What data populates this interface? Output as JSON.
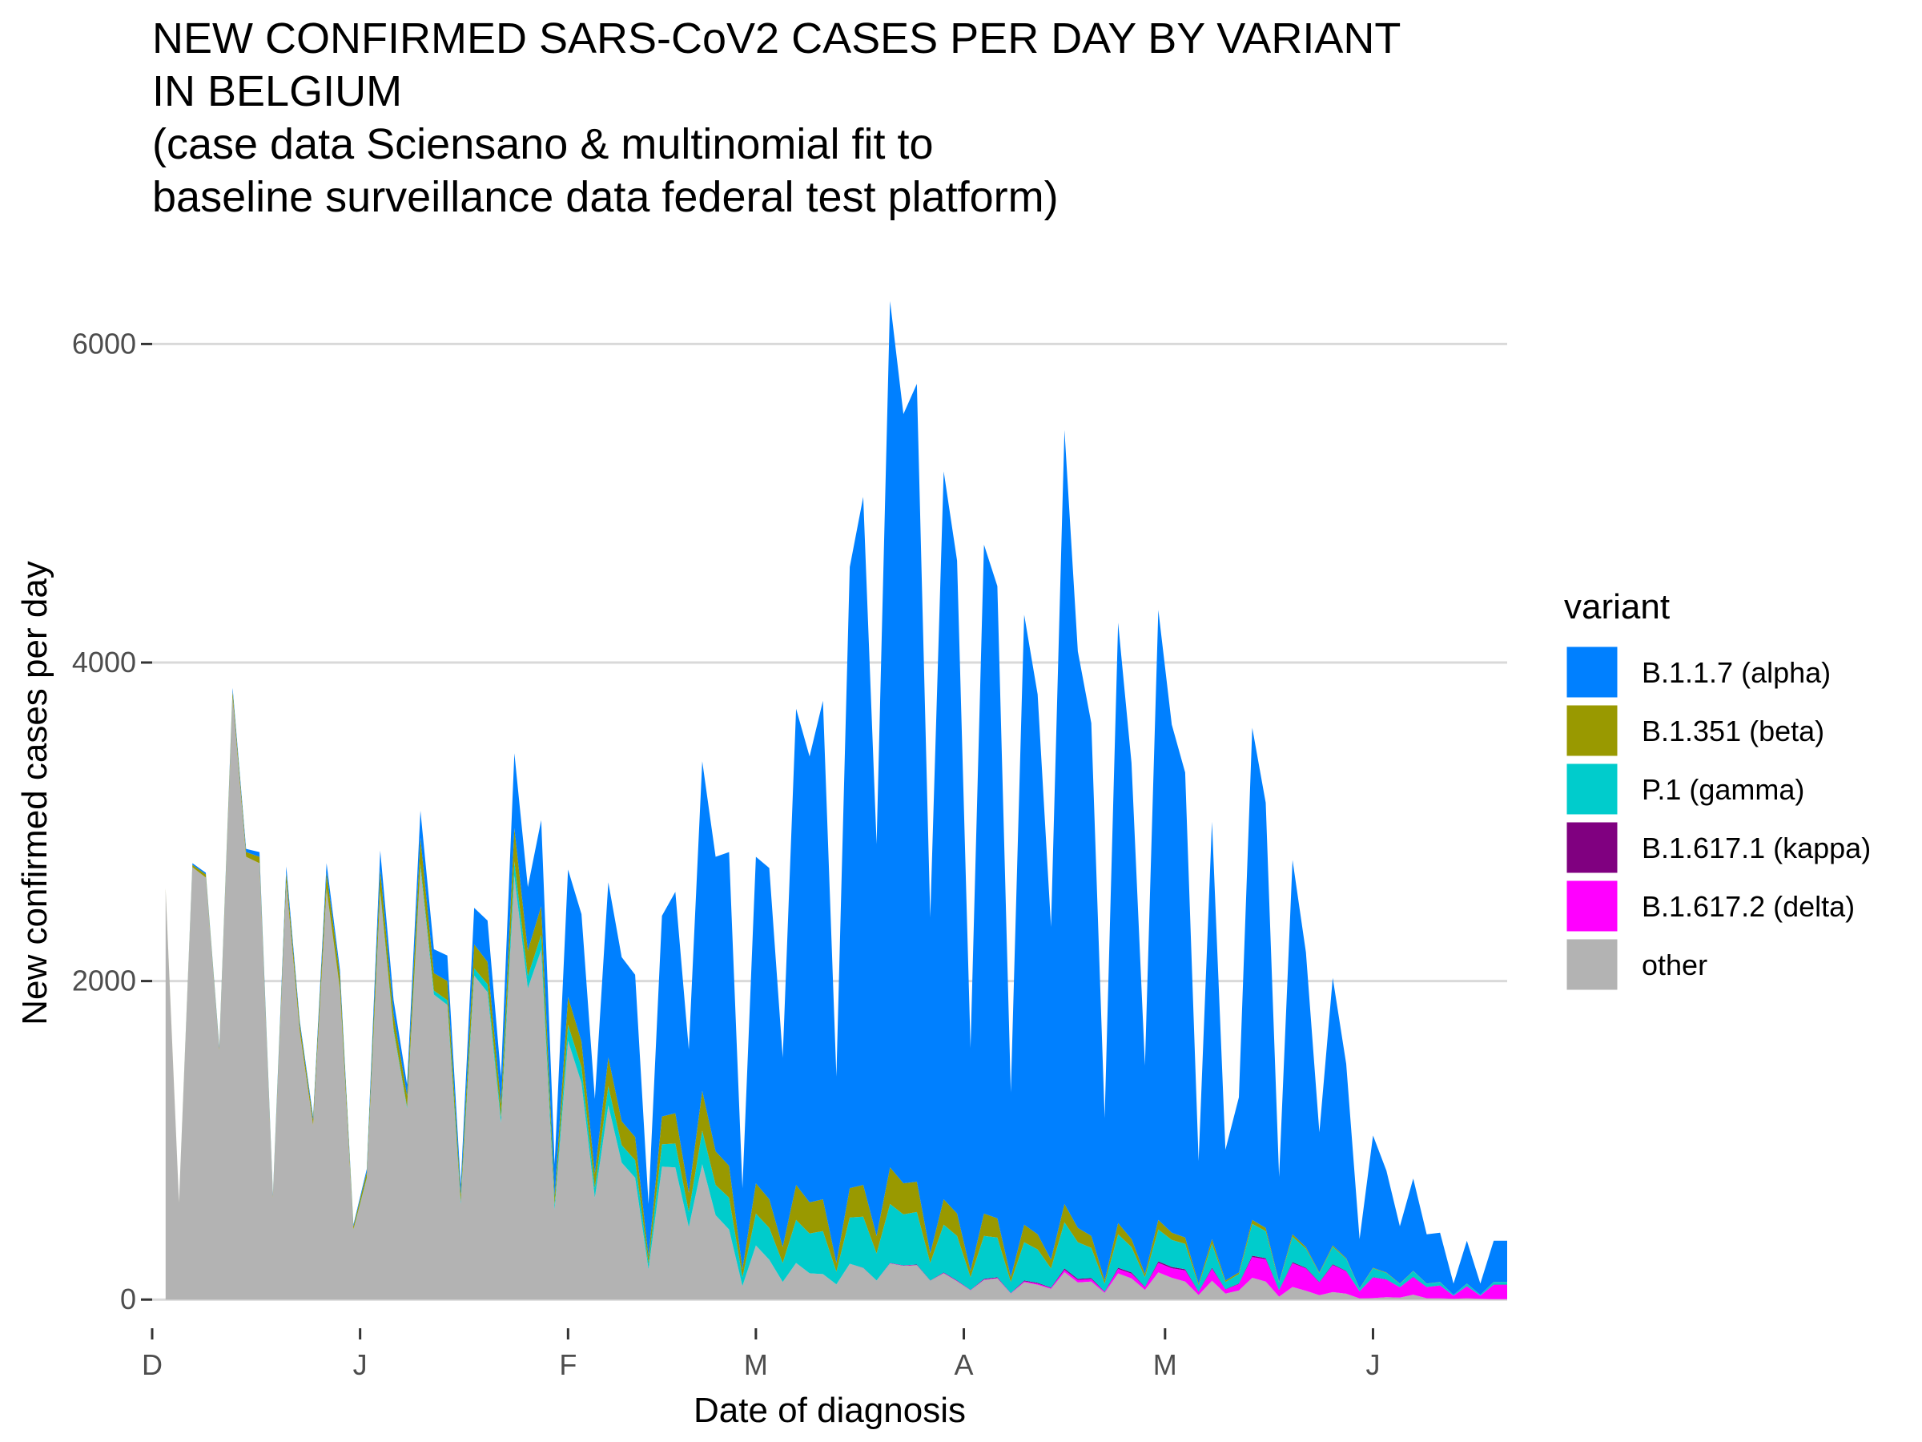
{
  "chart_data": {
    "type": "area",
    "stacked": true,
    "title_lines": [
      "NEW CONFIRMED SARS-CoV2 CASES PER DAY BY VARIANT",
      "IN BELGIUM",
      "(case data Sciensano & multinomial fit to",
      "baseline surveillance data federal test platform)"
    ],
    "xlabel": "Date of diagnosis",
    "ylabel": "New confirmed cases per day",
    "ylim": [
      -180,
      6500
    ],
    "y_ticks": [
      0,
      2000,
      4000,
      6000
    ],
    "x_tick_labels": [
      "D",
      "J",
      "F",
      "M",
      "A",
      "M",
      "J"
    ],
    "x_tick_days": [
      0,
      31,
      62,
      90,
      121,
      151,
      182
    ],
    "x_range_days": [
      0,
      202
    ],
    "x_unit": "days since 1 December",
    "grid": true,
    "legend_title": "variant",
    "legend_position": "right",
    "series_order_bottom_to_top": [
      "other",
      "B.1.617.2 (delta)",
      "B.1.617.1 (kappa)",
      "P.1 (gamma)",
      "B.1.351 (beta)",
      "B.1.1.7 (alpha)"
    ],
    "legend_items": [
      {
        "name": "B.1.1.7 (alpha)",
        "color": "#0080FF"
      },
      {
        "name": "B.1.351 (beta)",
        "color": "#999900"
      },
      {
        "name": "P.1 (gamma)",
        "color": "#00CCCC"
      },
      {
        "name": "B.1.617.1 (kappa)",
        "color": "#800080"
      },
      {
        "name": "B.1.617.2 (delta)",
        "color": "#FF00FF"
      },
      {
        "name": "other",
        "color": "#B3B3B3"
      }
    ],
    "daily": {
      "day": [
        2,
        4,
        6,
        8,
        10,
        12,
        14,
        16,
        18,
        20,
        22,
        24,
        26,
        28,
        30,
        32,
        34,
        36,
        38,
        40,
        42,
        44,
        46,
        48,
        50,
        52,
        54,
        56,
        58,
        60,
        62,
        64,
        66,
        68,
        70,
        72,
        74,
        76,
        78,
        80,
        82,
        84,
        86,
        88,
        90,
        92,
        94,
        96,
        98,
        100,
        102,
        104,
        106,
        108,
        110,
        112,
        114,
        116,
        118,
        120,
        122,
        124,
        126,
        128,
        130,
        132,
        134,
        136,
        138,
        140,
        142,
        144,
        146,
        148,
        150,
        152,
        154,
        156,
        158,
        160,
        162,
        164,
        166,
        168,
        170,
        172,
        174,
        176,
        178,
        180,
        182,
        184,
        186,
        188,
        190,
        192,
        194,
        196,
        198,
        200,
        202
      ],
      "total": [
        2580,
        610,
        2740,
        2680,
        1590,
        3840,
        2830,
        2810,
        660,
        2720,
        1750,
        1150,
        2740,
        2070,
        470,
        820,
        2820,
        1880,
        1350,
        3070,
        2200,
        2160,
        720,
        2460,
        2380,
        1400,
        3430,
        2590,
        3010,
        850,
        2700,
        2420,
        1260,
        2620,
        2150,
        2040,
        600,
        2410,
        2560,
        1570,
        3380,
        2780,
        2810,
        700,
        2780,
        2710,
        1520,
        3710,
        3410,
        3760,
        1400,
        4600,
        5040,
        2860,
        6270,
        5560,
        5750,
        2400,
        5200,
        4640,
        1580,
        4740,
        4480,
        1300,
        4300,
        3800,
        2340,
        5460,
        4070,
        3620,
        1140,
        4250,
        3370,
        1470,
        4330,
        3610,
        3310,
        870,
        3000,
        940,
        1270,
        3590,
        3120,
        770,
        2760,
        2180,
        1050,
        2020,
        1480,
        380,
        1030,
        810,
        460,
        760,
        410,
        420,
        100,
        370,
        100,
        370,
        370
      ],
      "alpha": [
        0,
        0,
        10,
        10,
        10,
        20,
        20,
        30,
        10,
        40,
        20,
        20,
        60,
        40,
        10,
        20,
        120,
        90,
        70,
        170,
        150,
        160,
        60,
        230,
        260,
        170,
        470,
        400,
        540,
        200,
        800,
        800,
        470,
        1100,
        1030,
        1020,
        330,
        1260,
        1390,
        900,
        2070,
        1850,
        1970,
        510,
        2050,
        2080,
        1190,
        2990,
        2800,
        3130,
        1170,
        3900,
        4320,
        2460,
        5440,
        4830,
        5010,
        2110,
        4570,
        4100,
        1400,
        4200,
        3970,
        1160,
        3830,
        3390,
        2090,
        4860,
        3620,
        3220,
        1020,
        3770,
        2990,
        1310,
        3830,
        3190,
        2920,
        770,
        2620,
        820,
        1100,
        3090,
        2670,
        660,
        2350,
        1850,
        880,
        1680,
        1220,
        310,
        830,
        640,
        360,
        580,
        310,
        310,
        70,
        270,
        70,
        260,
        260
      ],
      "beta": [
        6,
        2,
        15,
        20,
        13,
        40,
        30,
        40,
        12,
        60,
        45,
        35,
        100,
        80,
        20,
        35,
        130,
        90,
        70,
        165,
        110,
        120,
        45,
        150,
        140,
        85,
        210,
        160,
        180,
        55,
        175,
        160,
        90,
        180,
        150,
        145,
        45,
        175,
        190,
        120,
        250,
        210,
        200,
        50,
        190,
        180,
        100,
        220,
        195,
        200,
        55,
        185,
        200,
        110,
        230,
        195,
        190,
        60,
        160,
        140,
        40,
        140,
        120,
        30,
        110,
        95,
        55,
        115,
        90,
        75,
        20,
        70,
        50,
        20,
        60,
        45,
        40,
        10,
        30,
        10,
        10,
        25,
        20,
        5,
        15,
        10,
        5,
        8,
        5,
        2,
        4,
        3,
        2,
        2,
        1,
        1,
        0,
        1,
        0,
        1,
        1
      ],
      "gamma": [
        0,
        0,
        0,
        0,
        0,
        0,
        0,
        0,
        0,
        0,
        0,
        0,
        5,
        5,
        2,
        5,
        15,
        15,
        10,
        25,
        25,
        30,
        15,
        45,
        50,
        35,
        90,
        75,
        95,
        30,
        100,
        100,
        60,
        120,
        110,
        110,
        35,
        140,
        150,
        95,
        210,
        190,
        200,
        55,
        200,
        200,
        120,
        270,
        250,
        270,
        80,
        290,
        320,
        170,
        370,
        320,
        330,
        110,
        300,
        280,
        80,
        270,
        250,
        70,
        240,
        210,
        120,
        290,
        230,
        190,
        50,
        210,
        160,
        60,
        200,
        170,
        160,
        40,
        150,
        45,
        60,
        200,
        170,
        45,
        160,
        120,
        55,
        110,
        75,
        15,
        55,
        40,
        20,
        35,
        20,
        20,
        5,
        15,
        5,
        15,
        15
      ],
      "kappa": [
        0,
        0,
        0,
        0,
        0,
        0,
        0,
        0,
        0,
        0,
        0,
        0,
        0,
        0,
        0,
        0,
        0,
        0,
        0,
        0,
        0,
        0,
        0,
        0,
        0,
        0,
        0,
        0,
        0,
        0,
        0,
        0,
        0,
        0,
        0,
        0,
        0,
        0,
        0,
        0,
        0,
        0,
        0,
        0,
        0,
        0,
        0,
        0,
        0,
        0,
        0,
        0,
        1,
        0,
        2,
        2,
        3,
        1,
        3,
        3,
        1,
        4,
        4,
        1,
        5,
        5,
        3,
        8,
        7,
        6,
        2,
        8,
        7,
        3,
        9,
        8,
        7,
        2,
        7,
        2,
        3,
        8,
        7,
        2,
        6,
        5,
        3,
        5,
        3,
        1,
        2,
        2,
        1,
        2,
        1,
        1,
        0,
        1,
        0,
        1,
        1
      ],
      "delta": [
        0,
        0,
        0,
        0,
        0,
        0,
        0,
        0,
        0,
        0,
        0,
        0,
        0,
        0,
        0,
        0,
        0,
        0,
        0,
        0,
        0,
        0,
        0,
        0,
        0,
        0,
        0,
        0,
        0,
        0,
        0,
        0,
        0,
        0,
        0,
        0,
        0,
        0,
        0,
        0,
        0,
        0,
        0,
        0,
        0,
        0,
        0,
        0,
        0,
        0,
        0,
        0,
        0,
        0,
        1,
        1,
        1,
        0,
        2,
        2,
        1,
        3,
        3,
        1,
        6,
        7,
        5,
        15,
        16,
        16,
        6,
        28,
        30,
        16,
        60,
        60,
        70,
        20,
        75,
        25,
        40,
        130,
        140,
        40,
        150,
        140,
        80,
        170,
        140,
        45,
        130,
        110,
        65,
        110,
        70,
        80,
        20,
        75,
        20,
        90,
        90
      ]
    }
  }
}
